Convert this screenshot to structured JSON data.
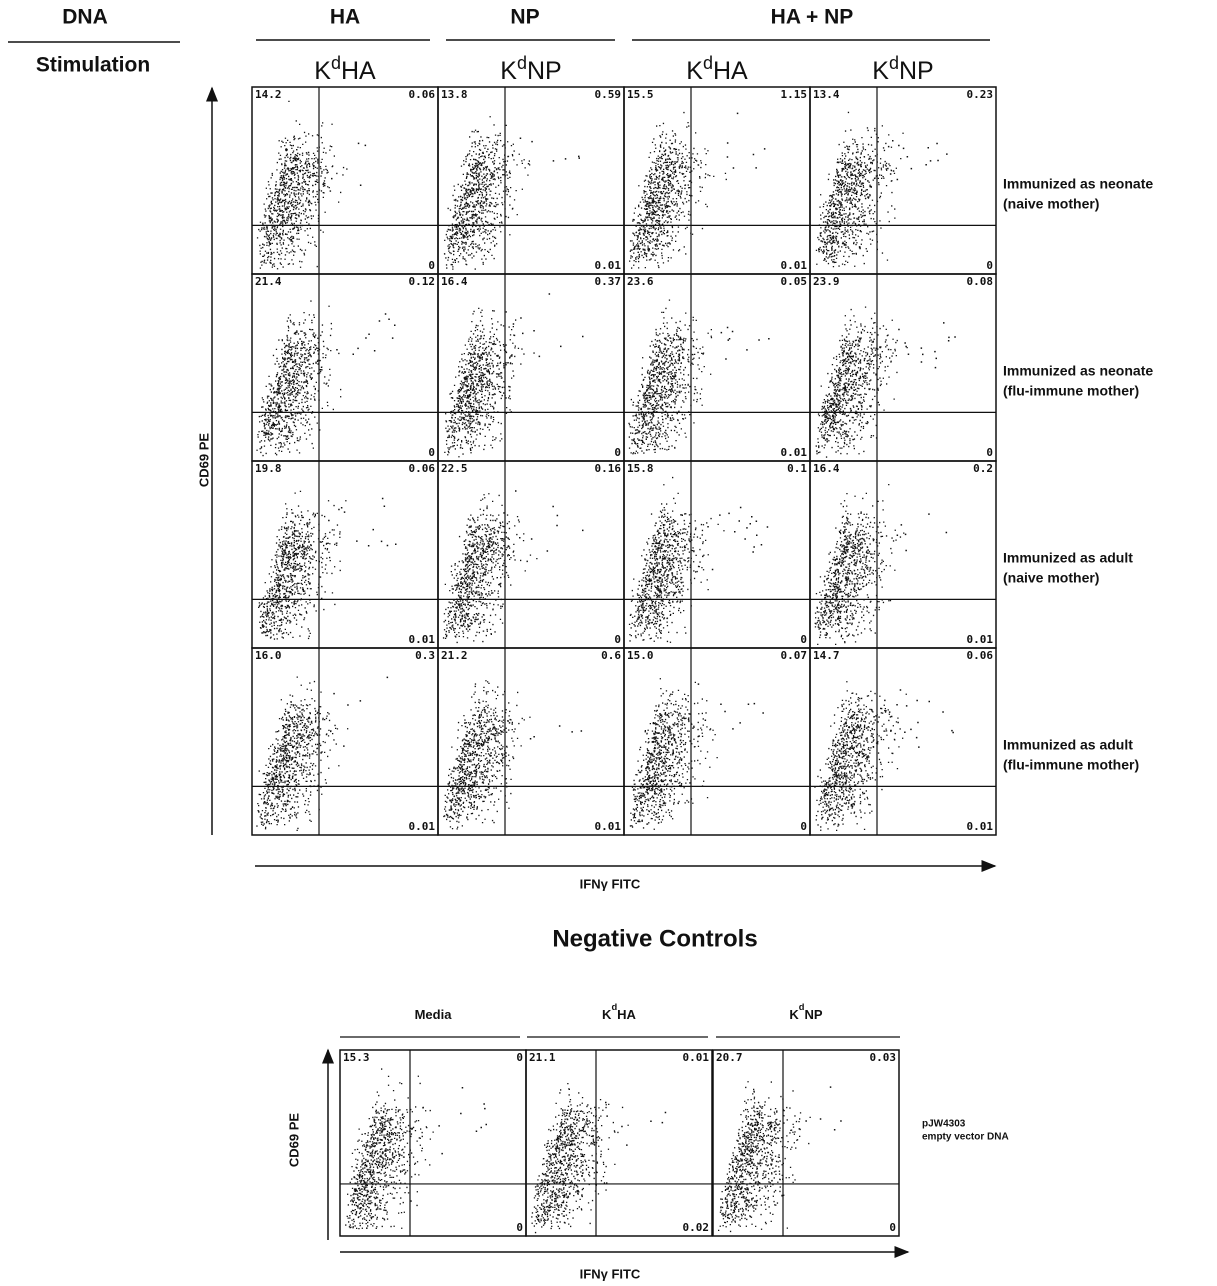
{
  "header": {
    "dna": "DNA",
    "stimulation": "Stimulation",
    "groups": [
      "HA",
      "NP",
      "HA + NP"
    ],
    "stimuli": [
      {
        "base": "K",
        "sup": "d",
        "rest": "HA"
      },
      {
        "base": "K",
        "sup": "d",
        "rest": "NP"
      },
      {
        "base": "K",
        "sup": "d",
        "rest": "HA"
      },
      {
        "base": "K",
        "sup": "d",
        "rest": "NP"
      }
    ]
  },
  "rows": [
    {
      "label": [
        "Immunized as neonate",
        "(naive mother)"
      ],
      "panels": [
        [
          "14.2",
          "0.06",
          "0"
        ],
        [
          "13.8",
          "0.59",
          "0.01"
        ],
        [
          "15.5",
          "1.15",
          "0.01"
        ],
        [
          "13.4",
          "0.23",
          "0"
        ]
      ]
    },
    {
      "label": [
        "Immunized as neonate",
        "(flu-immune mother)"
      ],
      "panels": [
        [
          "21.4",
          "0.12",
          "0"
        ],
        [
          "16.4",
          "0.37",
          "0"
        ],
        [
          "23.6",
          "0.05",
          "0.01"
        ],
        [
          "23.9",
          "0.08",
          "0"
        ]
      ]
    },
    {
      "label": [
        "Immunized as adult",
        "(naive mother)"
      ],
      "panels": [
        [
          "19.8",
          "0.06",
          "0.01"
        ],
        [
          "22.5",
          "0.16",
          "0"
        ],
        [
          "15.8",
          "0.1",
          "0"
        ],
        [
          "16.4",
          "0.2",
          "0.01"
        ]
      ]
    },
    {
      "label": [
        "Immunized as adult",
        "(flu-immune mother)"
      ],
      "panels": [
        [
          "16.0",
          "0.3",
          "0.01"
        ],
        [
          "21.2",
          "0.6",
          "0.01"
        ],
        [
          "15.0",
          "0.07",
          "0"
        ],
        [
          "14.7",
          "0.06",
          "0.01"
        ]
      ]
    }
  ],
  "y_axis": "CD69 PE",
  "x_axis": "IFNγ FITC",
  "controls": {
    "title": "Negative Controls",
    "headers": [
      {
        "base": "Media",
        "sup": "",
        "rest": ""
      },
      {
        "base": "K",
        "sup": "d",
        "rest": "HA"
      },
      {
        "base": "K",
        "sup": "d",
        "rest": "NP"
      }
    ],
    "panels": [
      [
        "15.3",
        "0",
        "0"
      ],
      [
        "21.1",
        "0.01",
        "0.02"
      ],
      [
        "20.7",
        "0.03",
        "0"
      ]
    ],
    "label": [
      "pJW4303",
      "empty vector DNA"
    ],
    "y_axis": "CD69 PE",
    "x_axis": "IFNγ FITC"
  }
}
